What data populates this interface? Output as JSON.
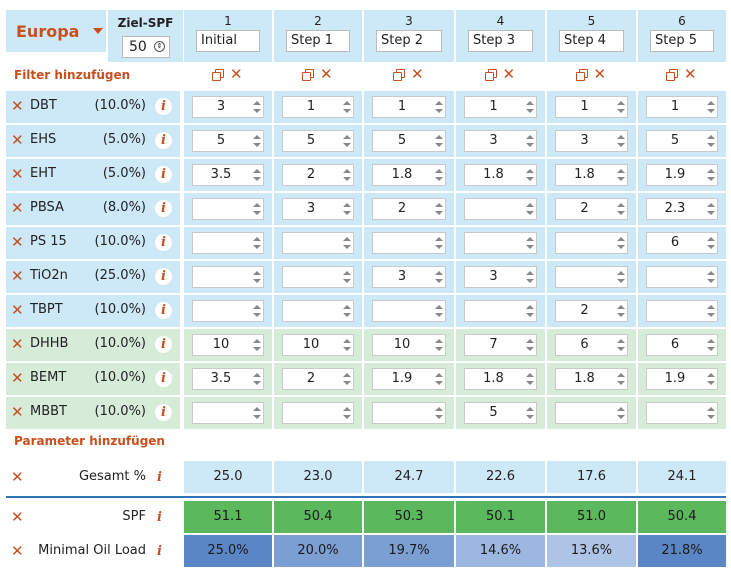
{
  "region": "Europa",
  "target_spf": {
    "label": "Ziel-SPF",
    "value": "50"
  },
  "steps": [
    {
      "num": "1",
      "name": "Initial"
    },
    {
      "num": "2",
      "name": "Step 1"
    },
    {
      "num": "3",
      "name": "Step 2"
    },
    {
      "num": "4",
      "name": "Step 3"
    },
    {
      "num": "5",
      "name": "Step 4"
    },
    {
      "num": "6",
      "name": "Step 5"
    }
  ],
  "add_filter_label": "Filter hinzufügen",
  "add_parameter_label": "Parameter hinzufügen",
  "filters": [
    {
      "name": "DBT",
      "pct": "(10.0%)",
      "values": [
        "3",
        "1",
        "1",
        "1",
        "1",
        "1"
      ]
    },
    {
      "name": "EHS",
      "pct": "(5.0%)",
      "values": [
        "5",
        "5",
        "5",
        "3",
        "3",
        "5"
      ]
    },
    {
      "name": "EHT",
      "pct": "(5.0%)",
      "values": [
        "3.5",
        "2",
        "1.8",
        "1.8",
        "1.8",
        "1.9"
      ]
    },
    {
      "name": "PBSA",
      "pct": "(8.0%)",
      "values": [
        "",
        "3",
        "2",
        "",
        "2",
        "2.3"
      ]
    },
    {
      "name": "PS 15",
      "pct": "(10.0%)",
      "values": [
        "",
        "",
        "",
        "",
        "",
        "6"
      ]
    },
    {
      "name": "TiO2n",
      "pct": "(25.0%)",
      "values": [
        "",
        "",
        "3",
        "3",
        "",
        ""
      ]
    },
    {
      "name": "TBPT",
      "pct": "(10.0%)",
      "values": [
        "",
        "",
        "",
        "",
        "2",
        ""
      ]
    },
    {
      "name": "DHHB",
      "pct": "(10.0%)",
      "values": [
        "10",
        "10",
        "10",
        "7",
        "6",
        "6"
      ]
    },
    {
      "name": "BEMT",
      "pct": "(10.0%)",
      "values": [
        "3.5",
        "2",
        "1.9",
        "1.8",
        "1.8",
        "1.9"
      ]
    },
    {
      "name": "MBBT",
      "pct": "(10.0%)",
      "values": [
        "",
        "",
        "",
        "5",
        "",
        ""
      ]
    }
  ],
  "gesamt": {
    "label": "Gesamt %",
    "values": [
      "25.0",
      "23.0",
      "24.7",
      "22.6",
      "17.6",
      "24.1"
    ]
  },
  "spf": {
    "label": "SPF",
    "values": [
      "51.1",
      "50.4",
      "50.3",
      "50.1",
      "51.0",
      "50.4"
    ]
  },
  "mol": {
    "label": "Minimal Oil Load",
    "values": [
      "25.0%",
      "20.0%",
      "19.7%",
      "14.6%",
      "13.6%",
      "21.8%"
    ]
  },
  "colors": {
    "header_bg": "#cde8f6",
    "green_row_bg": "#d6ecd9",
    "accent": "#c8501e",
    "spf_green": "#5cb85c",
    "mol_blue_shades": [
      "#5b86c5",
      "#7b9fd3",
      "#7b9fd3",
      "#9db8e0",
      "#aec4e6",
      "#5b86c5"
    ]
  }
}
